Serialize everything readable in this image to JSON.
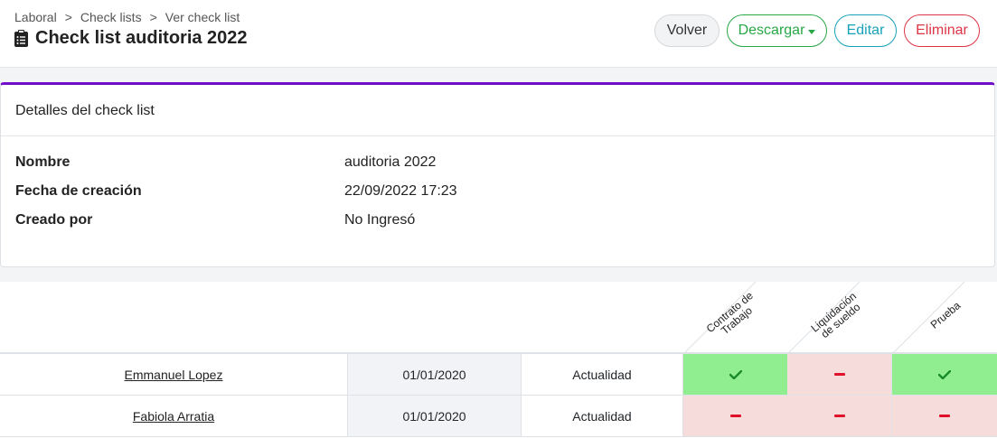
{
  "breadcrumb": [
    "Laboral",
    "Check lists",
    "Ver check list"
  ],
  "breadcrumb_sep": ">",
  "page_title": "Check list auditoria 2022",
  "buttons": {
    "volver": "Volver",
    "descargar": "Descargar",
    "editar": "Editar",
    "eliminar": "Eliminar"
  },
  "colors": {
    "accent": "#6f0fc9",
    "success": "#28a745",
    "info": "#17a2b8",
    "danger": "#dc3545",
    "ok_cell": "#90ee90",
    "missing_cell": "#f7dcdc"
  },
  "details": {
    "heading": "Detalles del check list",
    "rows": [
      {
        "label": "Nombre",
        "value": "auditoria 2022"
      },
      {
        "label": "Fecha de creación",
        "value": "22/09/2022 17:23"
      },
      {
        "label": "Creado por",
        "value": "No Ingresó"
      }
    ]
  },
  "matrix": {
    "columns": [
      "Contrato de Trabajo",
      "Liquidación de sueldo",
      "Prueba"
    ],
    "rows": [
      {
        "name": "Emmanuel Lopez",
        "date": "01/01/2020",
        "status": "Actualidad",
        "checks": [
          true,
          false,
          true
        ]
      },
      {
        "name": "Fabiola Arratia",
        "date": "01/01/2020",
        "status": "Actualidad",
        "checks": [
          false,
          false,
          false
        ]
      }
    ]
  }
}
